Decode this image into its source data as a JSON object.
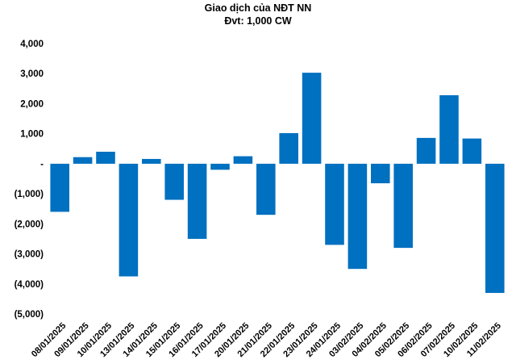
{
  "chart_data": {
    "type": "bar",
    "title": "Giao dịch của NĐT NN",
    "subtitle": "Đvt: 1,000 CW",
    "xlabel": "",
    "ylabel": "",
    "ylim": [
      -5000,
      4000
    ],
    "yticks": [
      4000,
      3000,
      2000,
      1000,
      0,
      -1000,
      -2000,
      -3000,
      -4000,
      -5000
    ],
    "ytick_labels": [
      "4,000",
      "3,000",
      "2,000",
      "1,000",
      "-",
      "(1,000)",
      "(2,000)",
      "(3,000)",
      "(4,000)",
      "(5,000)"
    ],
    "grid": false,
    "legend": "none",
    "bar_color": "#0070C0",
    "categories": [
      "08/01/2025",
      "09/01/2025",
      "10/01/2025",
      "13/01/2025",
      "14/01/2025",
      "15/01/2025",
      "16/01/2025",
      "17/01/2025",
      "20/01/2025",
      "21/01/2025",
      "22/01/2025",
      "23/01/2025",
      "24/01/2025",
      "03/02/2025",
      "04/02/2025",
      "05/02/2025",
      "06/02/2025",
      "07/02/2025",
      "10/02/2025",
      "11/02/2025"
    ],
    "values": [
      -1600,
      220,
      400,
      -3750,
      160,
      -1200,
      -2500,
      -200,
      250,
      -1700,
      1020,
      3030,
      -2700,
      -3500,
      -650,
      -2800,
      860,
      2280,
      840,
      -4300
    ]
  }
}
